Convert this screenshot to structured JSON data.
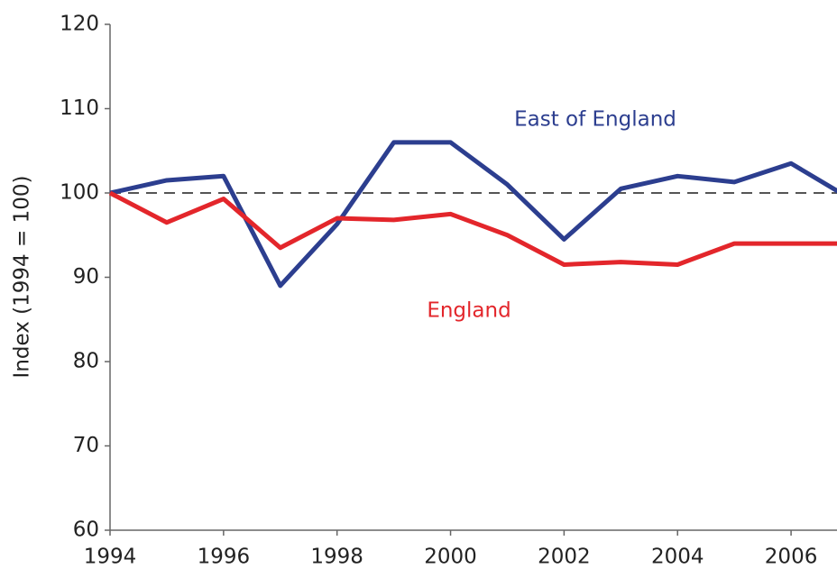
{
  "chart_data": {
    "type": "line",
    "y_label": "Index (1994 = 100)",
    "x": [
      1994,
      1995,
      1996,
      1997,
      1998,
      1999,
      2000,
      2001,
      2002,
      2003,
      2004,
      2005,
      2006,
      2007
    ],
    "series": [
      {
        "name": "East of England",
        "color": "#2c3e8f",
        "values": [
          100,
          101.5,
          102,
          89,
          96.3,
          106,
          106,
          101,
          94.5,
          100.5,
          102,
          101.3,
          103.5,
          99.5
        ]
      },
      {
        "name": "England",
        "color": "#e3262b",
        "values": [
          100,
          96.5,
          99.3,
          93.5,
          97,
          96.8,
          97.5,
          95,
          91.5,
          91.8,
          91.5,
          94,
          94,
          94
        ]
      }
    ],
    "reference_line": 100,
    "xlim": [
      1994,
      2007
    ],
    "ylim": [
      60,
      120
    ],
    "xticks": [
      1994,
      1996,
      1998,
      2000,
      2002,
      2004,
      2006
    ],
    "yticks": [
      60,
      70,
      80,
      90,
      100,
      110,
      120
    ]
  }
}
